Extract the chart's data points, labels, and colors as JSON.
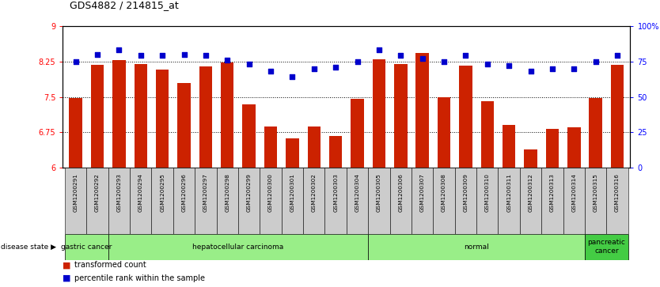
{
  "title": "GDS4882 / 214815_at",
  "samples": [
    "GSM1200291",
    "GSM1200292",
    "GSM1200293",
    "GSM1200294",
    "GSM1200295",
    "GSM1200296",
    "GSM1200297",
    "GSM1200298",
    "GSM1200299",
    "GSM1200300",
    "GSM1200301",
    "GSM1200302",
    "GSM1200303",
    "GSM1200304",
    "GSM1200305",
    "GSM1200306",
    "GSM1200307",
    "GSM1200308",
    "GSM1200309",
    "GSM1200310",
    "GSM1200311",
    "GSM1200312",
    "GSM1200313",
    "GSM1200314",
    "GSM1200315",
    "GSM1200316"
  ],
  "transformed_count": [
    7.47,
    8.18,
    8.27,
    8.19,
    8.08,
    7.79,
    8.15,
    8.23,
    7.34,
    6.88,
    6.62,
    6.87,
    6.67,
    7.46,
    8.29,
    8.19,
    8.42,
    7.5,
    8.16,
    7.41,
    6.9,
    6.39,
    6.83,
    6.85,
    7.47,
    8.18
  ],
  "percentile_rank": [
    75,
    80,
    83,
    79,
    79,
    80,
    79,
    76,
    73,
    68,
    64,
    70,
    71,
    75,
    83,
    79,
    77,
    75,
    79,
    73,
    72,
    68,
    70,
    70,
    75,
    79
  ],
  "disease_groups": [
    {
      "label": "gastric cancer",
      "start": 0,
      "end": 2
    },
    {
      "label": "hepatocellular carcinoma",
      "start": 2,
      "end": 14
    },
    {
      "label": "normal",
      "start": 14,
      "end": 24
    },
    {
      "label": "pancreatic\ncancer",
      "start": 24,
      "end": 26
    }
  ],
  "ylim_left": [
    6.0,
    9.0
  ],
  "ylim_right": [
    0,
    100
  ],
  "yticks_left": [
    6.0,
    6.75,
    7.5,
    8.25,
    9.0
  ],
  "ytick_labels_left": [
    "6",
    "6.75",
    "7.5",
    "8.25",
    "9"
  ],
  "yticks_right": [
    0,
    25,
    50,
    75,
    100
  ],
  "ytick_labels_right": [
    "0",
    "25",
    "50",
    "75",
    "100%"
  ],
  "bar_color": "#cc2200",
  "dot_color": "#0000cc",
  "bg_color": "#ffffff",
  "plot_bg": "#ffffff",
  "tick_label_bg": "#cccccc",
  "group_color_light": "#99ee88",
  "group_color_dark": "#44cc44",
  "disease_state_label": "disease state"
}
